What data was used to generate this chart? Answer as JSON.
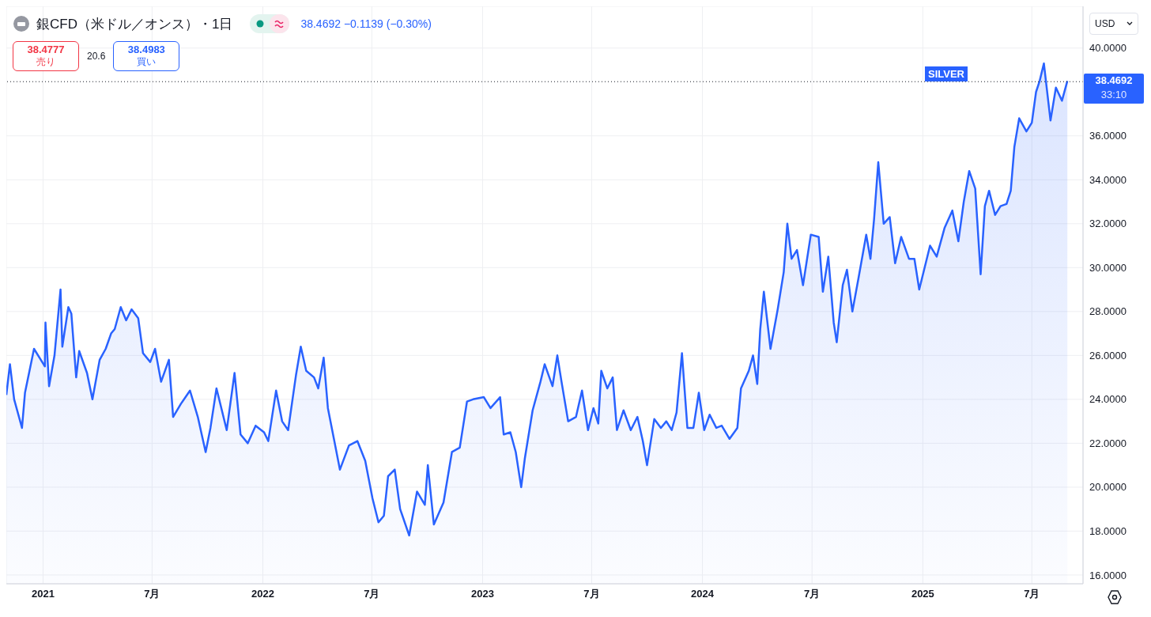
{
  "chart_data": {
    "type": "area",
    "title": "銀CFD（米ドル／オンス）・1日",
    "annotations": [
      "38.4692 −0.1139 (−0.30%)",
      "38.4777",
      "売り",
      "20.6",
      "38.4983",
      "買い",
      "USD",
      "SILVER",
      "33:10"
    ],
    "x": [
      "2020-11-01",
      "2020-11-07",
      "2020-11-14",
      "2020-11-27",
      "2020-12-02",
      "2020-12-17",
      "2021-01-04",
      "2021-01-05",
      "2021-01-11",
      "2021-01-20",
      "2021-01-30",
      "2021-02-02",
      "2021-02-12",
      "2021-02-17",
      "2021-02-25",
      "2021-03-02",
      "2021-03-15",
      "2021-03-24",
      "2021-04-05",
      "2021-04-15",
      "2021-04-24",
      "2021-04-30",
      "2021-05-10",
      "2021-05-19",
      "2021-05-28",
      "2021-06-08",
      "2021-06-16",
      "2021-06-28",
      "2021-07-06",
      "2021-07-16",
      "2021-07-29",
      "2021-08-05",
      "2021-08-18",
      "2021-09-02",
      "2021-09-15",
      "2021-09-28",
      "2021-10-06",
      "2021-10-16",
      "2021-11-02",
      "2021-11-15",
      "2021-11-25",
      "2021-12-07",
      "2021-12-20",
      "2022-01-03",
      "2022-01-10",
      "2022-01-23",
      "2022-02-02",
      "2022-02-12",
      "2022-02-25",
      "2022-03-05",
      "2022-03-14",
      "2022-03-27",
      "2022-04-03",
      "2022-04-12",
      "2022-04-19",
      "2022-04-29",
      "2022-05-09",
      "2022-05-24",
      "2022-06-07",
      "2022-06-20",
      "2022-07-02",
      "2022-07-12",
      "2022-07-21",
      "2022-07-28",
      "2022-08-08",
      "2022-08-17",
      "2022-09-01",
      "2022-09-14",
      "2022-09-27",
      "2022-10-02",
      "2022-10-12",
      "2022-10-28",
      "2022-11-11",
      "2022-11-24",
      "2022-12-06",
      "2022-12-16",
      "2023-01-03",
      "2023-01-14",
      "2023-01-30",
      "2023-02-05",
      "2023-02-16",
      "2023-02-25",
      "2023-03-06",
      "2023-03-12",
      "2023-03-25",
      "2023-04-07",
      "2023-04-14",
      "2023-04-27",
      "2023-05-05",
      "2023-05-12",
      "2023-05-23",
      "2023-06-05",
      "2023-06-15",
      "2023-06-25",
      "2023-07-04",
      "2023-07-12",
      "2023-07-17",
      "2023-07-27",
      "2023-08-05",
      "2023-08-12",
      "2023-08-23",
      "2023-09-04",
      "2023-09-15",
      "2023-09-24",
      "2023-10-01",
      "2023-10-13",
      "2023-10-24",
      "2023-11-02",
      "2023-11-11",
      "2023-11-19",
      "2023-11-28",
      "2023-12-07",
      "2023-12-17",
      "2023-12-26",
      "2024-01-04",
      "2024-01-13",
      "2024-01-24",
      "2024-02-02",
      "2024-02-15",
      "2024-02-28",
      "2024-03-05",
      "2024-03-18",
      "2024-03-25",
      "2024-04-01",
      "2024-04-06",
      "2024-04-12",
      "2024-04-23",
      "2024-05-05",
      "2024-05-15",
      "2024-05-21",
      "2024-05-28",
      "2024-06-06",
      "2024-06-16",
      "2024-06-29",
      "2024-07-12",
      "2024-07-19",
      "2024-07-28",
      "2024-08-06",
      "2024-08-11",
      "2024-08-21",
      "2024-08-28",
      "2024-09-06",
      "2024-09-16",
      "2024-09-29",
      "2024-10-06",
      "2024-10-12",
      "2024-10-19",
      "2024-10-28",
      "2024-11-07",
      "2024-11-16",
      "2024-11-26",
      "2024-12-09",
      "2024-12-18",
      "2024-12-26",
      "2025-01-04",
      "2025-01-13",
      "2025-01-24",
      "2025-02-06",
      "2025-02-19",
      "2025-03-01",
      "2025-03-10",
      "2025-03-19",
      "2025-03-29",
      "2025-04-07",
      "2025-04-14",
      "2025-04-21",
      "2025-05-01",
      "2025-05-10",
      "2025-05-20",
      "2025-05-27",
      "2025-06-02",
      "2025-06-10",
      "2025-06-22",
      "2025-07-01",
      "2025-07-08",
      "2025-07-14",
      "2025-07-21",
      "2025-08-01",
      "2025-08-10",
      "2025-08-20",
      "2025-08-29"
    ],
    "series": [
      {
        "color": "#2962ff",
        "values": [
          24.2,
          25.6,
          24.0,
          22.7,
          24.3,
          26.3,
          25.5,
          27.5,
          24.6,
          26.0,
          29.0,
          26.4,
          28.2,
          27.9,
          25.0,
          26.2,
          25.2,
          24.0,
          25.8,
          26.3,
          27.0,
          27.2,
          28.2,
          27.6,
          28.1,
          27.7,
          26.1,
          25.7,
          26.3,
          24.8,
          25.8,
          23.2,
          23.8,
          24.4,
          23.2,
          21.6,
          22.7,
          24.5,
          22.6,
          25.2,
          22.4,
          22.0,
          22.8,
          22.5,
          22.1,
          24.4,
          23.0,
          22.6,
          25.1,
          26.4,
          25.3,
          25.0,
          24.5,
          25.9,
          23.6,
          22.2,
          20.8,
          21.9,
          22.1,
          21.2,
          19.5,
          18.4,
          18.7,
          20.5,
          20.8,
          19.0,
          17.8,
          19.8,
          19.2,
          21.0,
          18.3,
          19.3,
          21.6,
          21.8,
          23.9,
          24.0,
          24.1,
          23.6,
          24.1,
          22.4,
          22.5,
          21.6,
          20.0,
          21.3,
          23.5,
          24.8,
          25.6,
          24.6,
          26.0,
          24.8,
          23.0,
          23.2,
          24.4,
          22.6,
          23.6,
          22.9,
          25.3,
          24.5,
          25.0,
          22.6,
          23.5,
          22.6,
          23.2,
          22.1,
          21.0,
          23.1,
          22.7,
          23.0,
          22.6,
          23.4,
          26.1,
          22.7,
          22.7,
          24.3,
          22.6,
          23.3,
          22.7,
          22.8,
          22.2,
          22.7,
          24.5,
          25.3,
          26.0,
          24.7,
          27.2,
          28.9,
          26.3,
          28.1,
          29.8,
          32.0,
          30.4,
          30.8,
          29.2,
          31.5,
          31.4,
          28.9,
          30.5,
          27.5,
          26.6,
          29.2,
          29.9,
          28.0,
          29.5,
          31.5,
          30.4,
          32.2,
          34.8,
          32.0,
          32.3,
          30.2,
          31.4,
          30.4,
          30.4,
          29.0,
          30.0,
          31.0,
          30.5,
          31.8,
          32.6,
          31.2,
          33.0,
          34.4,
          33.6,
          29.7,
          32.8,
          33.5,
          32.4,
          32.8,
          32.9,
          33.5,
          35.5,
          36.8,
          36.2,
          36.6,
          38.0,
          38.5,
          39.3,
          36.7,
          38.2,
          37.6,
          38.5
        ]
      }
    ],
    "xlim": [
      "2020-11-01",
      "2025-09-24"
    ],
    "xticks": [
      {
        "value": "2021-01-01",
        "label": "2021"
      },
      {
        "value": "2021-07-01",
        "label": "7月"
      },
      {
        "value": "2022-01-01",
        "label": "2022"
      },
      {
        "value": "2022-07-01",
        "label": "7月"
      },
      {
        "value": "2023-01-01",
        "label": "2023"
      },
      {
        "value": "2023-07-01",
        "label": "7月"
      },
      {
        "value": "2024-01-01",
        "label": "2024"
      },
      {
        "value": "2024-07-01",
        "label": "7月"
      },
      {
        "value": "2025-01-01",
        "label": "2025"
      },
      {
        "value": "2025-07-01",
        "label": "7月"
      }
    ],
    "ylim": [
      15.6,
      41.9
    ],
    "yticks": [
      {
        "value": 16,
        "label": "16.0000"
      },
      {
        "value": 18,
        "label": "18.0000"
      },
      {
        "value": 20,
        "label": "20.0000"
      },
      {
        "value": 22,
        "label": "22.0000"
      },
      {
        "value": 24,
        "label": "24.0000"
      },
      {
        "value": 26,
        "label": "26.0000"
      },
      {
        "value": 28,
        "label": "28.0000"
      },
      {
        "value": 30,
        "label": "30.0000"
      },
      {
        "value": 32,
        "label": "32.0000"
      },
      {
        "value": 34,
        "label": "34.0000"
      },
      {
        "value": 36,
        "label": "36.0000"
      },
      {
        "value": 40,
        "label": "40.0000"
      }
    ],
    "ref_lines": [
      {
        "axis": "y",
        "value": 38.4692,
        "label": "38.4692",
        "color": "#131722",
        "line_style": "dotted"
      }
    ],
    "grid": true,
    "legend": false,
    "marker": "none",
    "line_style": "solid"
  }
}
